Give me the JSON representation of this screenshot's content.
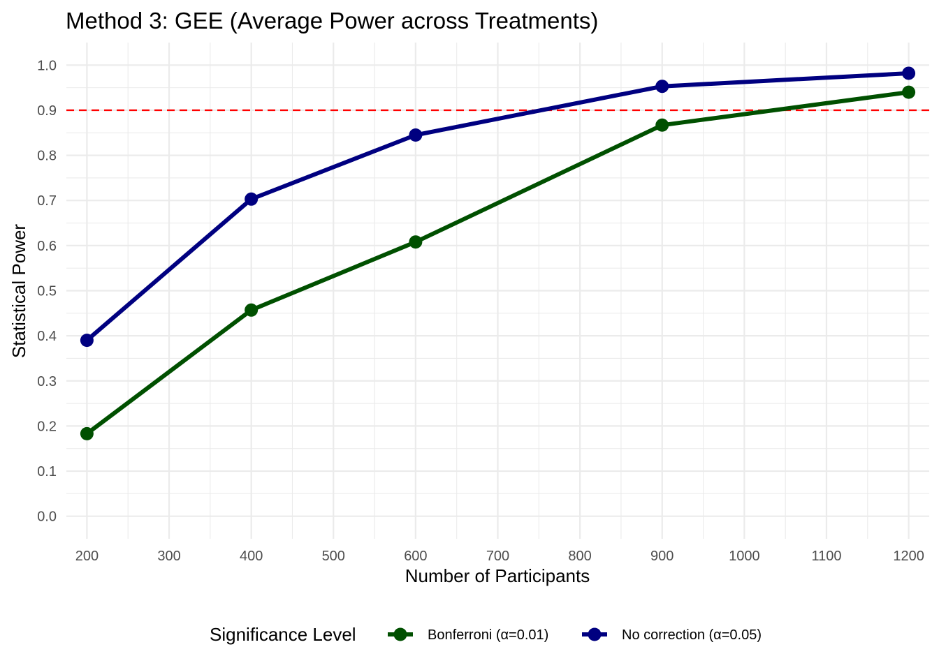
{
  "chart_data": {
    "type": "line",
    "title": "Method 3: GEE (Average Power across Treatments)",
    "xlabel": "Number of Participants",
    "ylabel": "Statistical Power",
    "xlim": [
      175,
      1225
    ],
    "ylim": [
      -0.05,
      1.05
    ],
    "x_ticks": [
      "200",
      "300",
      "400",
      "500",
      "600",
      "700",
      "800",
      "900",
      "1000",
      "1100",
      "1200"
    ],
    "y_ticks": [
      "0.0",
      "0.1",
      "0.2",
      "0.3",
      "0.4",
      "0.5",
      "0.6",
      "0.7",
      "0.8",
      "0.9",
      "1.0"
    ],
    "grid": true,
    "reference_line": {
      "y": 0.9,
      "style": "dashed",
      "color": "#ff0000"
    },
    "legend": {
      "title": "Significance Level",
      "position": "bottom"
    },
    "series": [
      {
        "name": "Bonferroni (α=0.01)",
        "color": "#005000",
        "x": [
          200,
          400,
          600,
          900,
          1200
        ],
        "y": [
          0.183,
          0.457,
          0.608,
          0.867,
          0.94
        ]
      },
      {
        "name": "No correction (α=0.05)",
        "color": "#000080",
        "x": [
          200,
          400,
          600,
          900,
          1200
        ],
        "y": [
          0.39,
          0.703,
          0.845,
          0.953,
          0.982
        ]
      }
    ]
  }
}
